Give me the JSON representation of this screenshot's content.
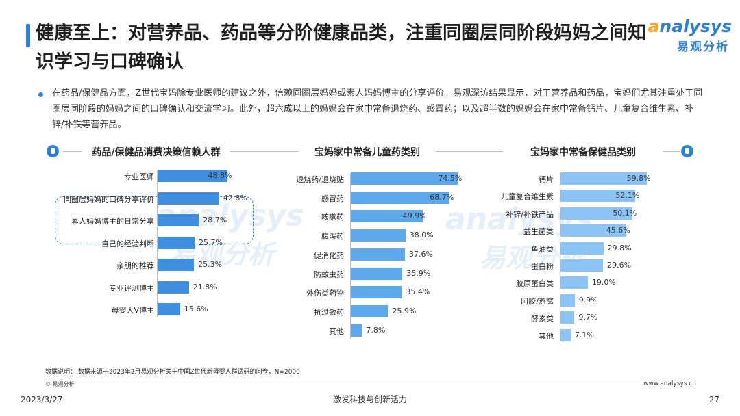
{
  "title": "健康至上：对营养品、药品等分阶健康品类，注重同圈层同阶段妈妈之间知识学习与口碑确认",
  "logo": {
    "en_first": "a",
    "en_rest": "nalysys",
    "cn": "易观分析"
  },
  "bullet": "在药品/保健品方面，Z世代宝妈除专业医师的建议之外，信赖同圈层妈妈或素人妈妈博主的分享评价。易观深访结果显示，对于营养品和药品，宝妈们尤其注重处于同圈层同阶段的妈妈之间的口碑确认和交流学习。此外，超六成以上的妈妈会在家中常备退烧药、感冒药；以及超半数的妈妈会在家中常备钙片、儿童复合维生素、补锌/补铁等营养品。",
  "colors": {
    "accent": "#2f7fd6",
    "bar_dark": "#3f8ee0",
    "bar_mid": "#5ea8ec",
    "bar_light": "#8cc4f5",
    "logo_orange": "#f5a623"
  },
  "chart_data": [
    {
      "type": "bar",
      "orientation": "horizontal",
      "title": "药品/保健品消费决策信赖人群",
      "categories": [
        "专业医师",
        "同圈层妈妈的口碑分享评价",
        "素人妈妈博主的日常分享",
        "自己的经验判断",
        "亲朋的推荐",
        "专业评测博主",
        "母婴大V博主"
      ],
      "values": [
        48.8,
        42.8,
        28.7,
        25.7,
        25.3,
        21.8,
        15.6
      ],
      "labels": [
        "48.8%",
        "42.8%",
        "28.7%",
        "25.7%",
        "25.3%",
        "21.8%",
        "15.6%"
      ],
      "highlighted": [
        "同圈层妈妈的口碑分享评价",
        "素人妈妈博主的日常分享"
      ],
      "color": "#3f8ee0"
    },
    {
      "type": "bar",
      "orientation": "horizontal",
      "title": "宝妈家中常备儿童药类别",
      "categories": [
        "退烧药/退烧贴",
        "感冒药",
        "咳嗽药",
        "腹泻药",
        "促消化药",
        "防蚊虫药",
        "外伤类药物",
        "抗过敏药",
        "其他"
      ],
      "values": [
        74.5,
        68.7,
        49.9,
        38.0,
        37.6,
        35.9,
        35.4,
        25.9,
        7.8
      ],
      "labels": [
        "74.5%",
        "68.7%",
        "49.9%",
        "38.0%",
        "37.6%",
        "35.9%",
        "35.4%",
        "25.9%",
        "7.8%"
      ],
      "color": "#5ea8ec"
    },
    {
      "type": "bar",
      "orientation": "horizontal",
      "title": "宝妈家中常备保健品类别",
      "categories": [
        "钙片",
        "儿童复合维生素",
        "补锌/补铁产品",
        "益生菌类",
        "鱼油类",
        "蛋白粉",
        "胶原蛋白类",
        "阿胶/燕窝",
        "酵素类",
        "其他"
      ],
      "values": [
        59.8,
        52.1,
        50.1,
        45.6,
        29.8,
        29.6,
        19.0,
        9.9,
        9.7,
        7.1
      ],
      "labels": [
        "59.8%",
        "52.1%",
        "50.1%",
        "45.6%",
        "29.8%",
        "29.6%",
        "19.0%",
        "9.9%",
        "9.7%",
        "7.1%"
      ],
      "color": "#8cc4f5"
    }
  ],
  "watermark": {
    "en": "analysys",
    "cn": "易观分析"
  },
  "footer": {
    "note": "数据说明：  数据来源于2023年2月易观分析关于中国Z世代新母婴人群调研的问卷，N=2000",
    "copyright": "© 易观分析",
    "site": "www.analysys.cn",
    "date": "2023/3/27",
    "slogan": "激发科技与创新活力",
    "page": "27"
  }
}
